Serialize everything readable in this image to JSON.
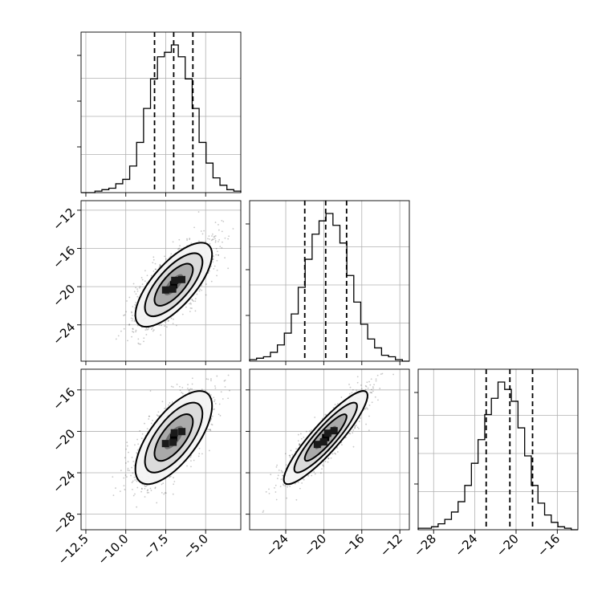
{
  "chart_data": {
    "type": "corner",
    "title": "",
    "parameters": [
      {
        "name": "",
        "median": -7.0,
        "q16": -8.2,
        "q84": -5.8,
        "sigma": 1.2,
        "range": [
          -12.8,
          -2.8
        ]
      },
      {
        "name": "",
        "median": -19.8,
        "q16": -22.0,
        "q84": -17.6,
        "sigma": 2.2,
        "range": [
          -27.8,
          -11.0
        ]
      },
      {
        "name": "",
        "median": -20.6,
        "q16": -22.9,
        "q84": -18.4,
        "sigma": 2.25,
        "range": [
          -29.5,
          -14.0
        ]
      }
    ],
    "correlations": {
      "0-1": 0.72,
      "0-2": 0.68,
      "1-2": 0.9
    },
    "x_ticks": [
      [
        "−12.5",
        "−10.0",
        "−7.5",
        "−5.0"
      ],
      [
        "−24",
        "−20",
        "−16",
        "−12"
      ],
      [
        "−28",
        "−24",
        "−20",
        "−16"
      ]
    ],
    "y_ticks": [
      [],
      [
        "−12",
        "−16",
        "−20",
        "−24"
      ],
      [
        "−16",
        "−20",
        "−24",
        "−28"
      ]
    ],
    "x_tick_values": [
      [
        -12.5,
        -10.0,
        -7.5,
        -5.0
      ],
      [
        -24,
        -20,
        -16,
        -12
      ],
      [
        -28,
        -24,
        -20,
        -16
      ]
    ],
    "y_tick_values": [
      [],
      [
        -12,
        -16,
        -20,
        -24
      ],
      [
        -16,
        -20,
        -24,
        -28
      ]
    ],
    "histograms": [
      [
        0,
        0,
        1,
        2,
        3,
        6,
        9,
        18,
        34,
        57,
        77,
        92,
        95,
        100,
        92,
        77,
        57,
        34,
        20,
        10,
        5,
        2,
        1
      ],
      [
        1,
        2,
        3,
        6,
        11,
        19,
        32,
        50,
        69,
        86,
        95,
        100,
        92,
        80,
        58,
        40,
        25,
        15,
        9,
        4,
        3,
        1,
        0
      ],
      [
        1,
        1,
        2,
        4,
        7,
        12,
        19,
        30,
        45,
        61,
        78,
        89,
        100,
        95,
        87,
        69,
        50,
        30,
        18,
        10,
        5,
        2,
        1,
        0
      ]
    ],
    "contour_levels_sigma": [
      0.5,
      1.0,
      1.5,
      2.0
    ],
    "grid": true,
    "histogram_quantile_lines": [
      "16%",
      "50%",
      "84%"
    ]
  }
}
